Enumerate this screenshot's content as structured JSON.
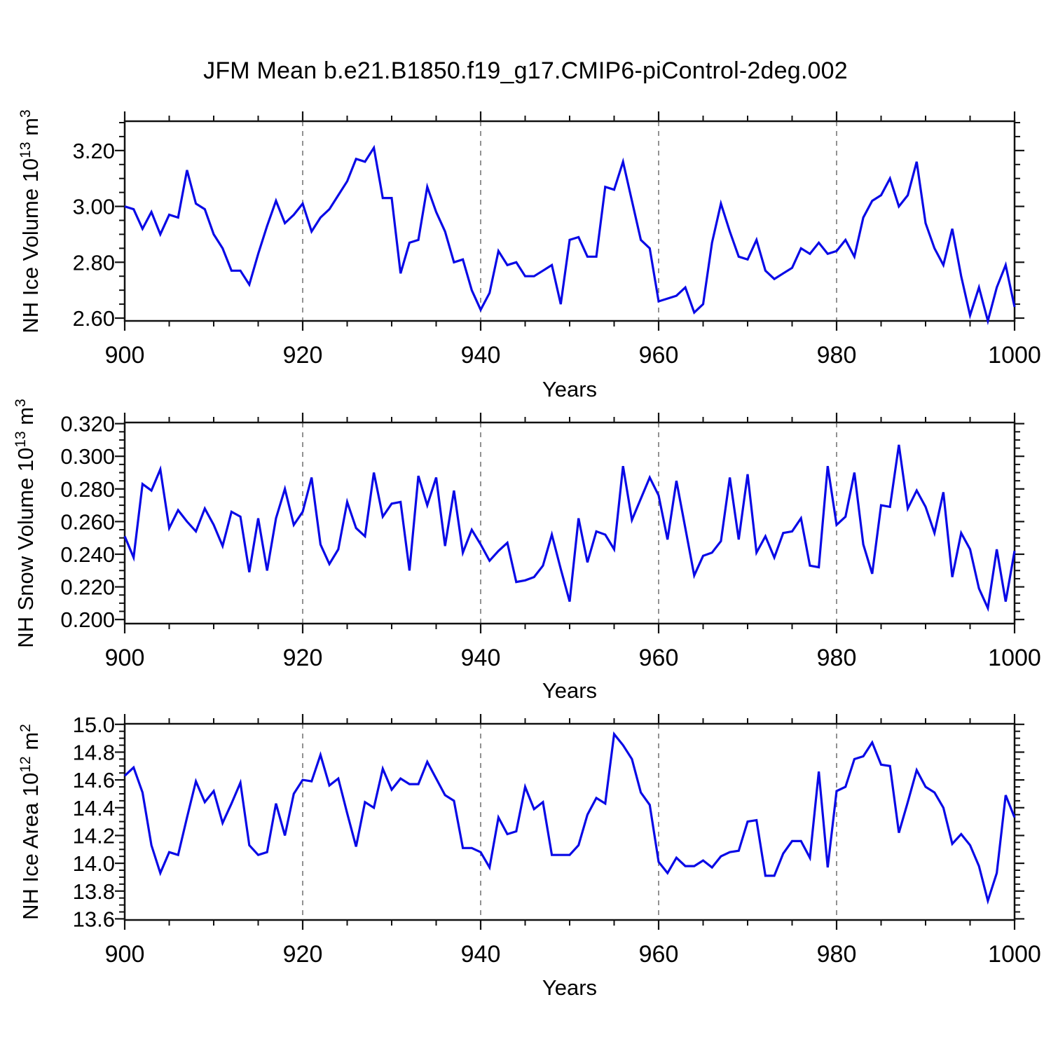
{
  "title": "JFM Mean b.e21.B1850.f19_g17.CMIP6-piControl-2deg.002",
  "colors": {
    "line": "#0909e6",
    "frame": "#111111",
    "grid": "#777777",
    "background": "#ffffff"
  },
  "chart_data": [
    {
      "type": "line",
      "ylabel_parts": {
        "pre": "NH Ice Volume 10",
        "sup1": "13",
        "mid": " m",
        "sup2": "3"
      },
      "xlabel": "Years",
      "x_start": 900,
      "x_end": 1000,
      "x_step": 1,
      "xlim": [
        900,
        1000
      ],
      "ylim": [
        2.59,
        3.305
      ],
      "x_ticks": [
        900,
        920,
        940,
        960,
        980,
        1000
      ],
      "x_tick_labels": [
        "900",
        "920",
        "940",
        "960",
        "980",
        "1000"
      ],
      "x_minor_step": 5,
      "y_ticks": [
        2.6,
        2.8,
        3.0,
        3.2
      ],
      "y_tick_labels": [
        "2.60",
        "2.80",
        "3.00",
        "3.20"
      ],
      "y_minor_step": 0.05,
      "grid_x": [
        920,
        940,
        960,
        980
      ],
      "legend": null,
      "values": [
        3.0,
        2.99,
        2.92,
        2.98,
        2.9,
        2.97,
        2.96,
        3.13,
        3.01,
        2.99,
        2.9,
        2.85,
        2.77,
        2.77,
        2.72,
        2.83,
        2.93,
        3.02,
        2.94,
        2.97,
        3.01,
        2.91,
        2.96,
        2.99,
        3.04,
        3.09,
        3.17,
        3.16,
        3.21,
        3.03,
        3.03,
        2.76,
        2.87,
        2.88,
        3.07,
        2.98,
        2.91,
        2.8,
        2.81,
        2.7,
        2.63,
        2.69,
        2.84,
        2.79,
        2.8,
        2.75,
        2.75,
        2.77,
        2.79,
        2.65,
        2.88,
        2.89,
        2.82,
        2.82,
        3.07,
        3.06,
        3.16,
        3.02,
        2.88,
        2.85,
        2.66,
        2.67,
        2.68,
        2.71,
        2.62,
        2.65,
        2.87,
        3.01,
        2.91,
        2.82,
        2.81,
        2.88,
        2.77,
        2.74,
        2.76,
        2.78,
        2.85,
        2.83,
        2.87,
        2.83,
        2.84,
        2.88,
        2.82,
        2.96,
        3.02,
        3.04,
        3.1,
        3.0,
        3.04,
        3.16,
        2.94,
        2.85,
        2.79,
        2.92,
        2.75,
        2.61,
        2.71,
        2.59,
        2.71,
        2.79,
        2.64
      ]
    },
    {
      "type": "line",
      "ylabel_parts": {
        "pre": "NH Snow Volume 10",
        "sup1": "13",
        "mid": " m",
        "sup2": "3"
      },
      "xlabel": "Years",
      "x_start": 900,
      "x_end": 1000,
      "x_step": 1,
      "xlim": [
        900,
        1000
      ],
      "ylim": [
        0.1975,
        0.3207
      ],
      "x_ticks": [
        900,
        920,
        940,
        960,
        980,
        1000
      ],
      "x_tick_labels": [
        "900",
        "920",
        "940",
        "960",
        "980",
        "1000"
      ],
      "x_minor_step": 5,
      "y_ticks": [
        0.2,
        0.22,
        0.24,
        0.26,
        0.28,
        0.3,
        0.32
      ],
      "y_tick_labels": [
        "0.200",
        "0.220",
        "0.240",
        "0.260",
        "0.280",
        "0.300",
        "0.320"
      ],
      "y_minor_step": 0.005,
      "grid_x": [
        920,
        940,
        960,
        980
      ],
      "legend": null,
      "values": [
        0.251,
        0.238,
        0.283,
        0.279,
        0.292,
        0.256,
        0.267,
        0.26,
        0.254,
        0.268,
        0.258,
        0.245,
        0.266,
        0.263,
        0.229,
        0.262,
        0.23,
        0.262,
        0.28,
        0.258,
        0.266,
        0.287,
        0.246,
        0.234,
        0.243,
        0.272,
        0.256,
        0.251,
        0.29,
        0.263,
        0.271,
        0.272,
        0.23,
        0.288,
        0.27,
        0.287,
        0.245,
        0.279,
        0.241,
        0.255,
        0.246,
        0.236,
        0.242,
        0.247,
        0.223,
        0.224,
        0.226,
        0.233,
        0.252,
        0.231,
        0.211,
        0.262,
        0.235,
        0.254,
        0.252,
        0.243,
        0.294,
        0.261,
        0.274,
        0.287,
        0.276,
        0.249,
        0.285,
        0.256,
        0.227,
        0.239,
        0.241,
        0.248,
        0.287,
        0.249,
        0.289,
        0.241,
        0.251,
        0.238,
        0.253,
        0.254,
        0.262,
        0.233,
        0.232,
        0.294,
        0.258,
        0.263,
        0.29,
        0.246,
        0.228,
        0.27,
        0.269,
        0.307,
        0.268,
        0.279,
        0.269,
        0.253,
        0.278,
        0.226,
        0.253,
        0.243,
        0.219,
        0.207,
        0.243,
        0.211,
        0.242
      ]
    },
    {
      "type": "line",
      "ylabel_parts": {
        "pre": "NH Ice Area 10",
        "sup1": "12",
        "mid": " m",
        "sup2": "2"
      },
      "xlabel": "Years",
      "x_start": 900,
      "x_end": 1000,
      "x_step": 1,
      "xlim": [
        900,
        1000
      ],
      "ylim": [
        13.592,
        15.004
      ],
      "x_ticks": [
        900,
        920,
        940,
        960,
        980,
        1000
      ],
      "x_tick_labels": [
        "900",
        "920",
        "940",
        "960",
        "980",
        "1000"
      ],
      "x_minor_step": 5,
      "y_ticks": [
        13.6,
        13.8,
        14.0,
        14.2,
        14.4,
        14.6,
        14.8,
        15.0
      ],
      "y_tick_labels": [
        "13.6",
        "13.8",
        "14.0",
        "14.2",
        "14.4",
        "14.6",
        "14.8",
        "15.0"
      ],
      "y_minor_step": 0.05,
      "grid_x": [
        920,
        940,
        960,
        980
      ],
      "legend": null,
      "values": [
        14.63,
        14.69,
        14.51,
        14.13,
        13.93,
        14.08,
        14.06,
        14.33,
        14.59,
        14.44,
        14.52,
        14.29,
        14.43,
        14.58,
        14.13,
        14.06,
        14.08,
        14.43,
        14.2,
        14.5,
        14.6,
        14.59,
        14.78,
        14.56,
        14.61,
        14.36,
        14.12,
        14.44,
        14.4,
        14.68,
        14.53,
        14.61,
        14.57,
        14.57,
        14.73,
        14.61,
        14.49,
        14.45,
        14.11,
        14.11,
        14.08,
        13.97,
        14.33,
        14.21,
        14.23,
        14.55,
        14.39,
        14.44,
        14.06,
        14.06,
        14.06,
        14.13,
        14.35,
        14.47,
        14.43,
        14.93,
        14.85,
        14.75,
        14.51,
        14.42,
        14.01,
        13.93,
        14.04,
        13.98,
        13.98,
        14.02,
        13.97,
        14.05,
        14.08,
        14.09,
        14.3,
        14.31,
        13.91,
        13.91,
        14.07,
        14.16,
        14.16,
        14.04,
        14.66,
        13.97,
        14.52,
        14.55,
        14.75,
        14.77,
        14.87,
        14.71,
        14.7,
        14.22,
        14.44,
        14.67,
        14.55,
        14.51,
        14.4,
        14.14,
        14.21,
        14.13,
        13.98,
        13.73,
        13.93,
        14.49,
        14.33
      ]
    }
  ]
}
